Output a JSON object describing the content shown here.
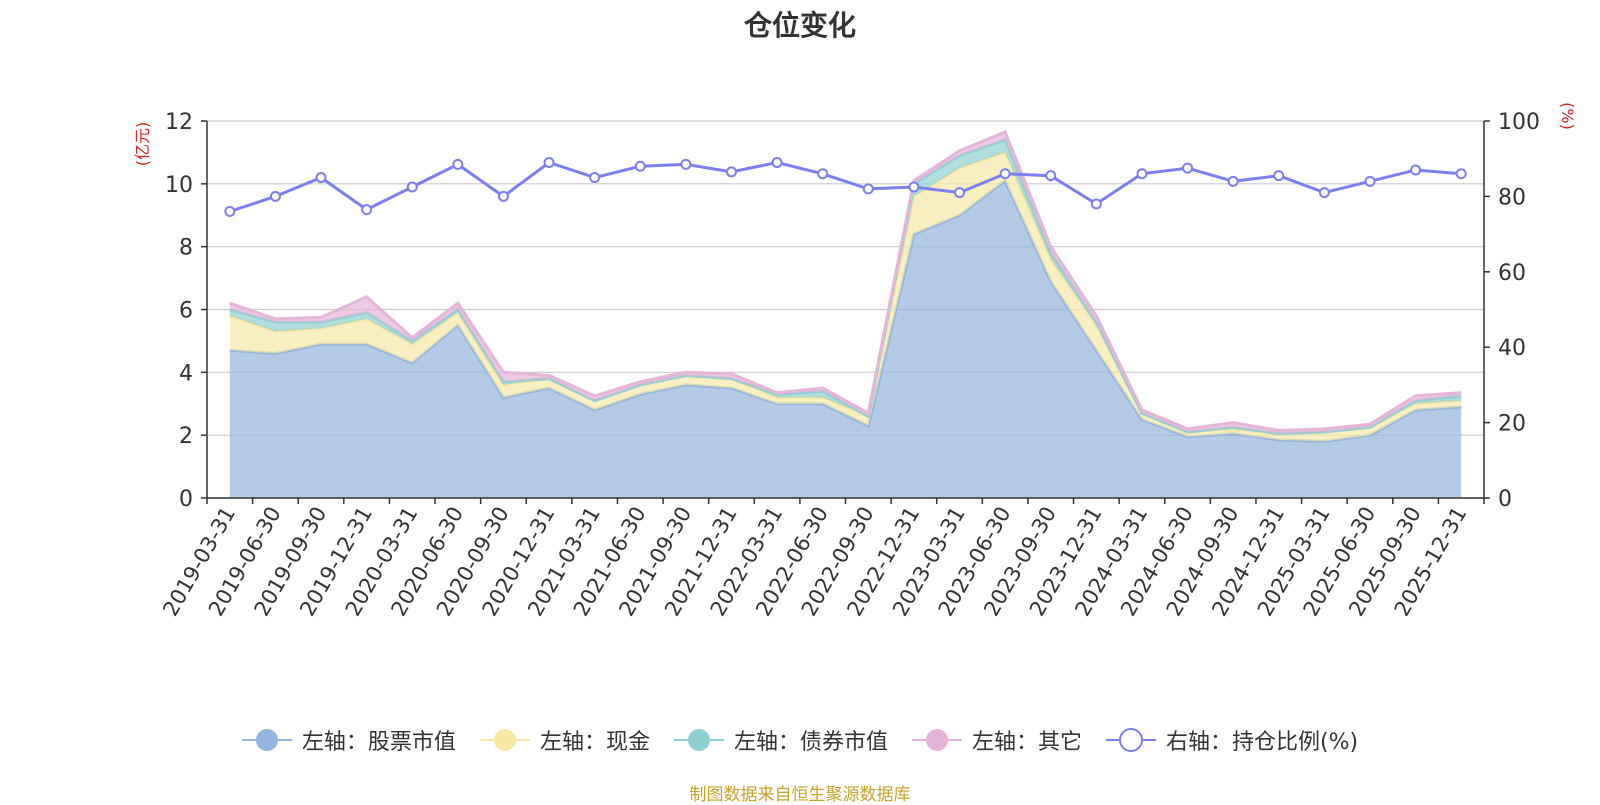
{
  "chart_data": {
    "type": "area",
    "title": "仓位变化",
    "ylabel_left": "(亿元)",
    "ylabel_right": "(%)",
    "ylim_left": [
      0,
      12
    ],
    "yticks_left": [
      "0",
      "2",
      "4",
      "6",
      "8",
      "10",
      "12"
    ],
    "ylim_right": [
      0,
      100
    ],
    "yticks_right": [
      "0",
      "20",
      "40",
      "60",
      "80",
      "100"
    ],
    "categories": [
      "2019-03-31",
      "2019-06-30",
      "2019-09-30",
      "2019-12-31",
      "2020-03-31",
      "2020-06-30",
      "2020-09-30",
      "2020-12-31",
      "2021-03-31",
      "2021-06-30",
      "2021-09-30",
      "2021-12-31",
      "2022-03-31",
      "2022-06-30",
      "2022-09-30",
      "2022-12-31",
      "2023-03-31",
      "2023-06-30",
      "2023-09-30",
      "2023-12-31",
      "2024-03-31",
      "2024-06-30",
      "2024-09-30",
      "2024-12-31",
      "2025-03-31",
      "2025-06-30",
      "2025-09-30",
      "2025-12-31"
    ],
    "series": [
      {
        "name": "左轴：股票市值",
        "axis": "left",
        "type": "area",
        "color": "#93b5dd",
        "values": [
          4.7,
          4.6,
          4.9,
          4.9,
          4.3,
          5.5,
          3.2,
          3.5,
          2.8,
          3.3,
          3.6,
          3.5,
          3.0,
          3.0,
          2.3,
          8.4,
          9.0,
          10.1,
          6.9,
          4.7,
          2.5,
          1.95,
          2.05,
          1.85,
          1.8,
          2.0,
          2.8,
          2.9
        ]
      },
      {
        "name": "左轴：现金",
        "axis": "left",
        "type": "area",
        "color": "#f8e8a6",
        "values": [
          1.1,
          0.7,
          0.5,
          0.8,
          0.6,
          0.4,
          0.4,
          0.3,
          0.3,
          0.3,
          0.3,
          0.3,
          0.2,
          0.2,
          0.3,
          1.2,
          1.5,
          0.9,
          0.7,
          0.8,
          0.2,
          0.15,
          0.15,
          0.2,
          0.3,
          0.25,
          0.2,
          0.2
        ]
      },
      {
        "name": "左轴：债券市值",
        "axis": "left",
        "type": "area",
        "color": "#8fd0d2",
        "values": [
          0.2,
          0.3,
          0.2,
          0.2,
          0.1,
          0.1,
          0.1,
          0.0,
          0.0,
          0.0,
          0.0,
          0.0,
          0.1,
          0.2,
          0.0,
          0.4,
          0.4,
          0.4,
          0.2,
          0.1,
          0.0,
          0.0,
          0.05,
          0.0,
          0.0,
          0.0,
          0.1,
          0.15
        ]
      },
      {
        "name": "左轴：其它",
        "axis": "left",
        "type": "area",
        "color": "#e6b4d9",
        "values": [
          0.2,
          0.1,
          0.15,
          0.5,
          0.1,
          0.2,
          0.3,
          0.1,
          0.15,
          0.1,
          0.1,
          0.15,
          0.05,
          0.1,
          0.1,
          0.1,
          0.15,
          0.25,
          0.2,
          0.2,
          0.1,
          0.1,
          0.15,
          0.1,
          0.1,
          0.1,
          0.15,
          0.1
        ]
      },
      {
        "name": "右轴：持仓比例(%)",
        "axis": "right",
        "type": "line",
        "color": "#7b7ff0",
        "values": [
          76,
          80,
          85,
          76.5,
          82.5,
          88.5,
          80,
          89,
          85,
          88,
          88.5,
          86.5,
          89,
          86,
          82,
          82.5,
          81,
          86,
          85.5,
          78,
          86,
          87.5,
          84,
          85.5,
          81,
          84,
          87,
          86
        ]
      }
    ]
  },
  "source_note": "制图数据来自恒生聚源数据库"
}
